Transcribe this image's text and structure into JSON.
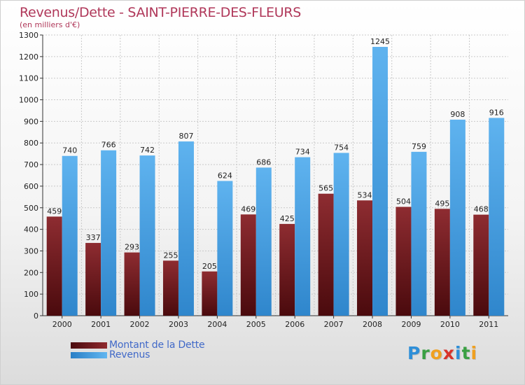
{
  "chart_data": {
    "type": "bar",
    "title": "Revenus/Dette - SAINT-PIERRE-DES-FLEURS",
    "subtitle": "(en milliers d'€)",
    "xlabel": "",
    "ylabel": "",
    "ylim": [
      0,
      1300
    ],
    "yticks": [
      "0",
      "100",
      "200",
      "300",
      "400",
      "500",
      "600",
      "700",
      "800",
      "900",
      "1000",
      "1100",
      "1200",
      "1300"
    ],
    "grid": true,
    "legend_position": "bottom-left",
    "categories": [
      "2000",
      "2001",
      "2002",
      "2003",
      "2004",
      "2005",
      "2006",
      "2007",
      "2008",
      "2009",
      "2010",
      "2011"
    ],
    "series": [
      {
        "name": "Montant de la Dette",
        "color": "#7a1e22",
        "values": [
          459,
          337,
          293,
          255,
          205,
          469,
          425,
          565,
          534,
          504,
          495,
          468
        ]
      },
      {
        "name": "Revenus",
        "color": "#4aa3e6",
        "values": [
          740,
          766,
          742,
          807,
          624,
          686,
          734,
          754,
          1245,
          759,
          908,
          916
        ]
      }
    ]
  },
  "brand": {
    "letters": [
      "P",
      "r",
      "o",
      "x",
      "i",
      "t",
      "i"
    ],
    "colors": [
      "#2f8fd8",
      "#3aa043",
      "#f0a020",
      "#d8332a",
      "#2f8fd8",
      "#3aa043",
      "#f0a020"
    ]
  }
}
